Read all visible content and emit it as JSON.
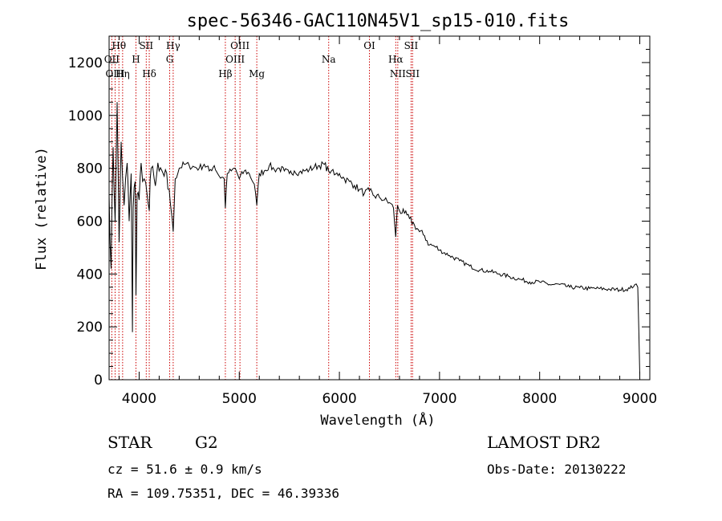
{
  "chart_data": {
    "type": "line",
    "title": "spec-56346-GAC110N45V1_sp15-010.fits",
    "xlabel": "Wavelength (Å)",
    "ylabel": "Flux (relative)",
    "xlim": [
      3700,
      9100
    ],
    "ylim": [
      0,
      1300
    ],
    "xticks": [
      4000,
      5000,
      6000,
      7000,
      8000,
      9000
    ],
    "yticks": [
      0,
      200,
      400,
      600,
      800,
      1000,
      1200
    ],
    "grid": false,
    "line_color": "#000000",
    "marker_color": "#cc0000",
    "series": [
      {
        "x": [
          3700,
          3720,
          3740,
          3760,
          3780,
          3800,
          3820,
          3850,
          3880,
          3900,
          3920,
          3933,
          3940,
          3960,
          3968,
          3980,
          4000,
          4020,
          4050,
          4080,
          4101,
          4120,
          4150,
          4200,
          4250,
          4300,
          4320,
          4340,
          4360,
          4400,
          4450,
          4500,
          4550,
          4600,
          4650,
          4700,
          4750,
          4800,
          4850,
          4861,
          4880,
          4920,
          4960,
          5000,
          5050,
          5100,
          5150,
          5175,
          5200,
          5250,
          5300,
          5350,
          5400,
          5450,
          5500,
          5550,
          5600,
          5650,
          5700,
          5750,
          5800,
          5850,
          5893,
          5920,
          5950,
          6000,
          6050,
          6100,
          6150,
          6200,
          6250,
          6300,
          6350,
          6400,
          6450,
          6500,
          6540,
          6563,
          6580,
          6600,
          6650,
          6700,
          6750,
          6800,
          6850,
          6900,
          6950,
          7000,
          7100,
          7200,
          7300,
          7400,
          7500,
          7600,
          7700,
          7800,
          7900,
          8000,
          8100,
          8200,
          8300,
          8400,
          8500,
          8600,
          8700,
          8800,
          8900,
          8950,
          8980,
          9000
        ],
        "y": [
          700,
          420,
          880,
          600,
          1050,
          520,
          900,
          660,
          820,
          600,
          780,
          180,
          650,
          750,
          320,
          700,
          680,
          820,
          760,
          700,
          640,
          800,
          760,
          790,
          770,
          720,
          640,
          560,
          760,
          800,
          815,
          810,
          805,
          800,
          815,
          790,
          810,
          770,
          760,
          650,
          780,
          790,
          800,
          760,
          790,
          780,
          740,
          660,
          780,
          790,
          810,
          795,
          800,
          790,
          780,
          790,
          785,
          790,
          795,
          805,
          810,
          815,
          790,
          790,
          775,
          780,
          760,
          750,
          735,
          720,
          705,
          715,
          695,
          690,
          680,
          670,
          650,
          540,
          660,
          640,
          630,
          610,
          585,
          560,
          545,
          510,
          505,
          490,
          470,
          450,
          430,
          415,
          410,
          400,
          390,
          380,
          370,
          370,
          360,
          360,
          350,
          348,
          345,
          345,
          342,
          340,
          345,
          360,
          350,
          20
        ]
      }
    ],
    "lines": [
      {
        "label": "Hθ",
        "x": 3798,
        "row": 1
      },
      {
        "label": "OII",
        "x": 3727,
        "row": 2
      },
      {
        "label": "OIII",
        "x": 3760,
        "row": 3
      },
      {
        "label": "Hη",
        "x": 3835,
        "row": 3
      },
      {
        "label": "H",
        "x": 3968,
        "row": 2
      },
      {
        "label": "SII",
        "x": 4071,
        "row": 1
      },
      {
        "label": "Hδ",
        "x": 4101,
        "row": 3
      },
      {
        "label": "Hγ",
        "x": 4340,
        "row": 1
      },
      {
        "label": "G",
        "x": 4305,
        "row": 2
      },
      {
        "label": "Hβ",
        "x": 4861,
        "row": 3
      },
      {
        "label": "OIII",
        "x": 4959,
        "row": 2
      },
      {
        "label": "OIII",
        "x": 5007,
        "row": 1
      },
      {
        "label": "Mg",
        "x": 5175,
        "row": 3
      },
      {
        "label": "Na",
        "x": 5893,
        "row": 2
      },
      {
        "label": "OI",
        "x": 6300,
        "row": 1
      },
      {
        "label": "Hα",
        "x": 6563,
        "row": 2
      },
      {
        "label": "NII",
        "x": 6583,
        "row": 3
      },
      {
        "label": "SII",
        "x": 6716,
        "row": 1
      },
      {
        "label": "SII",
        "x": 6731,
        "row": 3
      }
    ]
  },
  "info": {
    "class_label": "STAR",
    "subclass": "G2",
    "survey": "LAMOST DR2",
    "cz": "cz = 51.6 ± 0.9 km/s",
    "obs_date": "Obs-Date: 20130222",
    "coords": "RA = 109.75351, DEC =  46.39336"
  }
}
